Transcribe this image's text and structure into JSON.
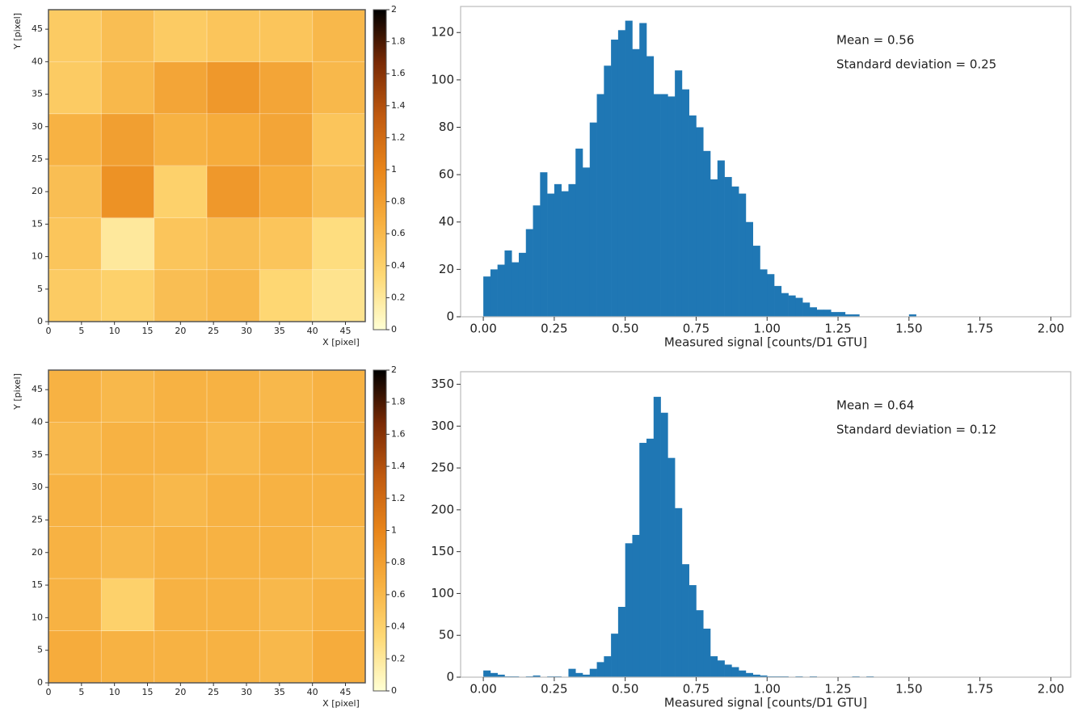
{
  "chart_data": [
    {
      "type": "heatmap",
      "xlabel": "X [pixel]",
      "ylabel": "Y [pixel]",
      "xbins": [
        0,
        8,
        16,
        24,
        32,
        40,
        48
      ],
      "ybins": [
        0,
        8,
        16,
        24,
        32,
        40,
        48
      ],
      "z": [
        [
          0.45,
          0.4,
          0.55,
          0.6,
          0.35,
          0.25
        ],
        [
          0.5,
          0.2,
          0.5,
          0.55,
          0.5,
          0.3
        ],
        [
          0.55,
          0.9,
          0.4,
          0.85,
          0.7,
          0.55
        ],
        [
          0.65,
          0.8,
          0.65,
          0.7,
          0.75,
          0.5
        ],
        [
          0.45,
          0.6,
          0.75,
          0.85,
          0.75,
          0.6
        ],
        [
          0.45,
          0.55,
          0.45,
          0.5,
          0.5,
          0.6
        ]
      ],
      "zlim": [
        0,
        2
      ],
      "colormap": [
        "#ffffd4",
        "#fed976",
        "#f7b040",
        "#e8851a",
        "#c05a10",
        "#7a2a05",
        "#000000"
      ],
      "colorbar_ticks": [
        0,
        0.2,
        0.4,
        0.6,
        0.8,
        1,
        1.2,
        1.4,
        1.6,
        1.8,
        2
      ],
      "xlim": [
        0,
        48
      ],
      "ylim": [
        0,
        48
      ],
      "xticks": [
        0,
        5,
        10,
        15,
        20,
        25,
        30,
        35,
        40,
        45
      ],
      "yticks": [
        0,
        5,
        10,
        15,
        20,
        25,
        30,
        35,
        40,
        45
      ]
    },
    {
      "type": "histogram",
      "xlabel": "Measured signal [counts/D1 GTU]",
      "annotations": [
        "Mean = 0.56",
        "Standard deviation = 0.25"
      ],
      "color": "#1f77b4",
      "bins": [
        0,
        0.025,
        0.05,
        0.075,
        0.1,
        0.125,
        0.15,
        0.175,
        0.2,
        0.225,
        0.25,
        0.275,
        0.3,
        0.325,
        0.35,
        0.375,
        0.4,
        0.425,
        0.45,
        0.475,
        0.5,
        0.525,
        0.55,
        0.575,
        0.6,
        0.625,
        0.65,
        0.675,
        0.7,
        0.725,
        0.75,
        0.775,
        0.8,
        0.825,
        0.85,
        0.875,
        0.9,
        0.925,
        0.95,
        0.975,
        1.0,
        1.025,
        1.05,
        1.075,
        1.1,
        1.125,
        1.15,
        1.175,
        1.2,
        1.225,
        1.25,
        1.275,
        1.3,
        1.325,
        1.35,
        1.375,
        1.4,
        1.425,
        1.45,
        1.475,
        1.5,
        1.525
      ],
      "values": [
        17,
        20,
        22,
        28,
        23,
        27,
        37,
        47,
        61,
        52,
        56,
        53,
        56,
        71,
        63,
        82,
        94,
        106,
        117,
        121,
        125,
        113,
        124,
        110,
        94,
        94,
        93,
        104,
        96,
        85,
        80,
        70,
        58,
        66,
        59,
        55,
        52,
        40,
        30,
        20,
        18,
        13,
        10,
        9,
        8,
        6,
        4,
        3,
        3,
        2,
        2,
        1,
        1,
        0,
        0,
        0,
        0,
        0,
        0,
        0,
        1
      ],
      "xlim": [
        -0.08,
        2.07
      ],
      "ylim": [
        0,
        131
      ],
      "xticks": [
        {
          "value": 0,
          "label": "0.00"
        },
        {
          "value": 0.25,
          "label": "0.25"
        },
        {
          "value": 0.5,
          "label": "0.50"
        },
        {
          "value": 0.75,
          "label": "0.75"
        },
        {
          "value": 1,
          "label": "1.00"
        },
        {
          "value": 1.25,
          "label": "1.25"
        },
        {
          "value": 1.5,
          "label": "1.50"
        },
        {
          "value": 1.75,
          "label": "1.75"
        },
        {
          "value": 2,
          "label": "2.00"
        }
      ],
      "yticks": [
        0,
        20,
        40,
        60,
        80,
        100,
        120
      ]
    },
    {
      "type": "heatmap",
      "xlabel": "X [pixel]",
      "ylabel": "Y [pixel]",
      "xbins": [
        0,
        8,
        16,
        24,
        32,
        40,
        48
      ],
      "ybins": [
        0,
        8,
        16,
        24,
        32,
        40,
        48
      ],
      "z": [
        [
          0.7,
          0.65,
          0.65,
          0.65,
          0.6,
          0.7
        ],
        [
          0.65,
          0.4,
          0.65,
          0.65,
          0.6,
          0.65
        ],
        [
          0.65,
          0.6,
          0.65,
          0.65,
          0.65,
          0.6
        ],
        [
          0.65,
          0.65,
          0.6,
          0.65,
          0.65,
          0.65
        ],
        [
          0.6,
          0.65,
          0.65,
          0.6,
          0.65,
          0.65
        ],
        [
          0.65,
          0.6,
          0.65,
          0.65,
          0.6,
          0.65
        ]
      ],
      "zlim": [
        0,
        2
      ],
      "colormap": [
        "#ffffd4",
        "#fed976",
        "#f7b040",
        "#e8851a",
        "#c05a10",
        "#7a2a05",
        "#000000"
      ],
      "colorbar_ticks": [
        0,
        0.2,
        0.4,
        0.6,
        0.8,
        1,
        1.2,
        1.4,
        1.6,
        1.8,
        2
      ],
      "xlim": [
        0,
        48
      ],
      "ylim": [
        0,
        48
      ],
      "xticks": [
        0,
        5,
        10,
        15,
        20,
        25,
        30,
        35,
        40,
        45
      ],
      "yticks": [
        0,
        5,
        10,
        15,
        20,
        25,
        30,
        35,
        40,
        45
      ]
    },
    {
      "type": "histogram",
      "xlabel": "Measured signal [counts/D1 GTU]",
      "annotations": [
        "Mean = 0.64",
        "Standard deviation = 0.12"
      ],
      "color": "#1f77b4",
      "bins": [
        0,
        0.025,
        0.05,
        0.075,
        0.1,
        0.125,
        0.15,
        0.175,
        0.2,
        0.225,
        0.25,
        0.275,
        0.3,
        0.325,
        0.35,
        0.375,
        0.4,
        0.425,
        0.45,
        0.475,
        0.5,
        0.525,
        0.55,
        0.575,
        0.6,
        0.625,
        0.65,
        0.675,
        0.7,
        0.725,
        0.75,
        0.775,
        0.8,
        0.825,
        0.85,
        0.875,
        0.9,
        0.925,
        0.95,
        0.975,
        1.0,
        1.025,
        1.05,
        1.075,
        1.1,
        1.125,
        1.15,
        1.175,
        1.2,
        1.225,
        1.25,
        1.275,
        1.3,
        1.325,
        1.35,
        1.375,
        1.4
      ],
      "values": [
        8,
        5,
        3,
        1,
        1,
        0,
        1,
        2,
        0,
        1,
        1,
        0,
        10,
        5,
        3,
        10,
        18,
        25,
        52,
        84,
        160,
        170,
        280,
        285,
        335,
        316,
        262,
        202,
        135,
        110,
        80,
        58,
        25,
        20,
        15,
        12,
        8,
        5,
        3,
        2,
        1,
        1,
        1,
        0,
        1,
        0,
        1,
        0,
        0,
        0,
        0,
        0,
        1,
        0,
        1,
        0
      ],
      "xlim": [
        -0.08,
        2.07
      ],
      "ylim": [
        0,
        365
      ],
      "xticks": [
        {
          "value": 0,
          "label": "0.00"
        },
        {
          "value": 0.25,
          "label": "0.25"
        },
        {
          "value": 0.5,
          "label": "0.50"
        },
        {
          "value": 0.75,
          "label": "0.75"
        },
        {
          "value": 1,
          "label": "1.00"
        },
        {
          "value": 1.25,
          "label": "1.25"
        },
        {
          "value": 1.5,
          "label": "1.50"
        },
        {
          "value": 1.75,
          "label": "1.75"
        },
        {
          "value": 2,
          "label": "2.00"
        }
      ],
      "yticks": [
        0,
        50,
        100,
        150,
        200,
        250,
        300,
        350
      ]
    }
  ]
}
